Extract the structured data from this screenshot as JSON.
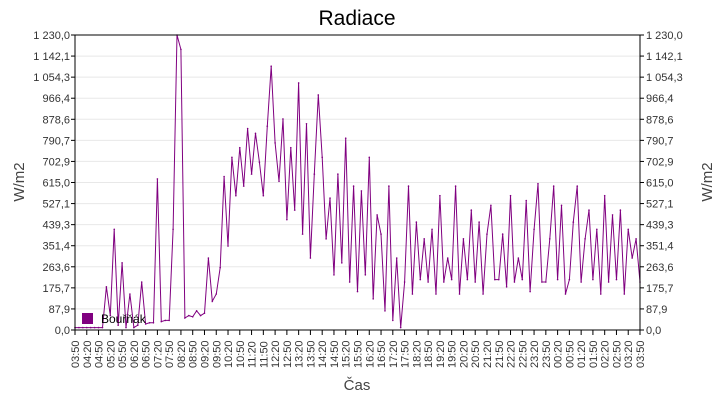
{
  "chart_data": {
    "type": "line",
    "title": "Radiace",
    "xlabel": "Čas",
    "ylabel": "W/m2",
    "ylabel_right": "W/m2",
    "ylim": [
      0,
      1230
    ],
    "grid": true,
    "legend_position": "bottom-left",
    "y_ticks": [
      "0,0",
      "87,9",
      "175,7",
      "263,6",
      "351,4",
      "439,3",
      "527,1",
      "615,0",
      "702,9",
      "790,7",
      "878,6",
      "966,4",
      "1 054,3",
      "1 142,1",
      "1 230,0"
    ],
    "x_ticks": [
      "03:50",
      "04:20",
      "04:50",
      "05:20",
      "05:50",
      "06:20",
      "06:50",
      "07:20",
      "07:50",
      "08:20",
      "08:50",
      "09:20",
      "09:50",
      "10:20",
      "10:50",
      "11:20",
      "11:50",
      "12:20",
      "12:50",
      "13:20",
      "13:50",
      "14:20",
      "14:50",
      "15:20",
      "15:50",
      "16:20",
      "16:50",
      "17:20",
      "17:50",
      "18:20",
      "18:50",
      "19:20",
      "19:50",
      "20:20",
      "20:50",
      "21:20",
      "21:50",
      "22:20",
      "22:50",
      "23:20",
      "23:50",
      "00:20",
      "00:50",
      "01:20",
      "01:50",
      "02:20",
      "02:50",
      "03:20",
      "03:50"
    ],
    "x_start": "03:50",
    "x_step_minutes": 10,
    "series": [
      {
        "name": "Bouřňák",
        "color": "#800080",
        "values": [
          10,
          10,
          10,
          10,
          10,
          10,
          10,
          10,
          180,
          60,
          420,
          20,
          280,
          10,
          150,
          10,
          20,
          200,
          25,
          30,
          30,
          630,
          35,
          40,
          40,
          420,
          1230,
          1170,
          50,
          60,
          55,
          80,
          60,
          70,
          300,
          120,
          150,
          260,
          640,
          350,
          720,
          560,
          760,
          600,
          840,
          650,
          820,
          700,
          560,
          850,
          1100,
          780,
          620,
          880,
          460,
          760,
          500,
          1030,
          400,
          860,
          300,
          650,
          980,
          720,
          380,
          550,
          230,
          650,
          280,
          800,
          200,
          600,
          160,
          580,
          230,
          720,
          130,
          480,
          400,
          80,
          600,
          40,
          300,
          10,
          200,
          600,
          150,
          450,
          210,
          380,
          200,
          420,
          150,
          560,
          200,
          300,
          210,
          600,
          150,
          380,
          210,
          500,
          200,
          450,
          150,
          400,
          520,
          210,
          210,
          400,
          180,
          560,
          200,
          300,
          210,
          540,
          160,
          420,
          610,
          200,
          200,
          380,
          600,
          210,
          520,
          150,
          210,
          450,
          600,
          200,
          380,
          500,
          210,
          420,
          150,
          560,
          200,
          480,
          210,
          500,
          150,
          420,
          300,
          380,
          200
        ]
      }
    ]
  }
}
